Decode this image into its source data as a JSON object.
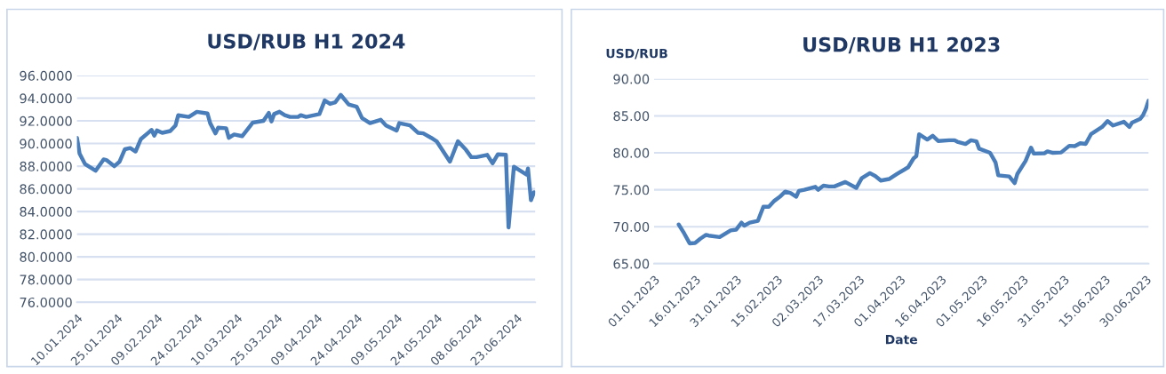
{
  "chart_data": [
    {
      "type": "line",
      "title": "USD/RUB H1 2024",
      "grid": "y",
      "x": [
        "2024-01-10",
        "2024-01-11",
        "2024-01-13",
        "2024-01-15",
        "2024-01-17",
        "2024-01-20",
        "2024-01-21",
        "2024-01-24",
        "2024-01-26",
        "2024-01-28",
        "2024-01-30",
        "2024-02-01",
        "2024-02-03",
        "2024-02-06",
        "2024-02-07",
        "2024-02-08",
        "2024-02-09",
        "2024-02-11",
        "2024-02-14",
        "2024-02-16",
        "2024-02-17",
        "2024-02-21",
        "2024-02-24",
        "2024-02-28",
        "2024-02-29",
        "2024-03-02",
        "2024-03-03",
        "2024-03-06",
        "2024-03-07",
        "2024-03-09",
        "2024-03-12",
        "2024-03-15",
        "2024-03-16",
        "2024-03-20",
        "2024-03-22",
        "2024-03-23",
        "2024-03-24",
        "2024-03-26",
        "2024-03-28",
        "2024-03-30",
        "2024-04-02",
        "2024-04-03",
        "2024-04-05",
        "2024-04-10",
        "2024-04-12",
        "2024-04-14",
        "2024-04-16",
        "2024-04-18",
        "2024-04-21",
        "2024-04-24",
        "2024-04-26",
        "2024-04-29",
        "2024-05-03",
        "2024-05-05",
        "2024-05-09",
        "2024-05-10",
        "2024-05-14",
        "2024-05-17",
        "2024-05-19",
        "2024-05-22",
        "2024-05-24",
        "2024-05-29",
        "2024-06-01",
        "2024-06-04",
        "2024-06-06",
        "2024-06-08",
        "2024-06-12",
        "2024-06-14",
        "2024-06-16",
        "2024-06-19",
        "2024-06-20",
        "2024-06-22",
        "2024-06-26T19:00",
        "2024-06-27T07:00",
        "2024-06-28T10:00",
        "2024-06-29T14:00"
      ],
      "series": [
        {
          "color": "#4a7ebb",
          "values": [
            90.5,
            89.1,
            88.2,
            87.9,
            87.6,
            88.6,
            88.55,
            88.0,
            88.4,
            89.5,
            89.6,
            89.3,
            90.4,
            91.0,
            91.2,
            90.7,
            91.15,
            90.95,
            91.1,
            91.6,
            92.5,
            92.35,
            92.8,
            92.65,
            91.8,
            90.9,
            91.4,
            91.35,
            90.5,
            90.8,
            90.65,
            91.55,
            91.85,
            92.0,
            92.7,
            91.95,
            92.6,
            92.8,
            92.5,
            92.35,
            92.35,
            92.5,
            92.35,
            92.6,
            93.8,
            93.5,
            93.65,
            94.3,
            93.45,
            93.25,
            92.25,
            91.8,
            92.1,
            91.6,
            91.15,
            91.8,
            91.6,
            90.95,
            90.9,
            90.5,
            90.2,
            88.4,
            90.2,
            89.45,
            88.8,
            88.8,
            89.0,
            88.25,
            89.05,
            89.0,
            82.6,
            87.95,
            87.25,
            87.8,
            85.0,
            85.7
          ]
        }
      ],
      "xlim": [
        "2024-01-10",
        "2024-06-30"
      ],
      "xticks": [
        {
          "value": "2024-01-10",
          "label": "10.01.2024"
        },
        {
          "value": "2024-01-25",
          "label": "25.01.2024"
        },
        {
          "value": "2024-02-09",
          "label": "09.02.2024"
        },
        {
          "value": "2024-02-24",
          "label": "24.02.2024"
        },
        {
          "value": "2024-03-10",
          "label": "10.03.2024"
        },
        {
          "value": "2024-03-25",
          "label": "25.03.2024"
        },
        {
          "value": "2024-04-09",
          "label": "09.04.2024"
        },
        {
          "value": "2024-04-24",
          "label": "24.04.2024"
        },
        {
          "value": "2024-05-09",
          "label": "09.05.2024"
        },
        {
          "value": "2024-05-24",
          "label": "24.05.2024"
        },
        {
          "value": "2024-06-08",
          "label": "08.06.2024"
        },
        {
          "value": "2024-06-23",
          "label": "23.06.2024"
        }
      ],
      "ylim": [
        76,
        96
      ],
      "yticks": [
        {
          "value": 76,
          "label": "76.0000"
        },
        {
          "value": 78,
          "label": "78.0000"
        },
        {
          "value": 80,
          "label": "80.0000"
        },
        {
          "value": 82,
          "label": "82.0000"
        },
        {
          "value": 84,
          "label": "84.0000"
        },
        {
          "value": 86,
          "label": "86.0000"
        },
        {
          "value": 88,
          "label": "88.0000"
        },
        {
          "value": 90,
          "label": "90.0000"
        },
        {
          "value": 92,
          "label": "92.0000"
        },
        {
          "value": 94,
          "label": "94.0000"
        },
        {
          "value": 96,
          "label": "96.0000"
        }
      ]
    },
    {
      "type": "line",
      "title": "USD/RUB H1 2023",
      "xlabel": "Date",
      "ylabel": "USD/RUB",
      "grid": "y",
      "x": [
        "2023-01-10",
        "2023-01-12",
        "2023-01-14",
        "2023-01-16",
        "2023-01-18",
        "2023-01-20",
        "2023-01-21",
        "2023-01-25",
        "2023-01-29",
        "2023-01-31",
        "2023-02-02",
        "2023-02-03",
        "2023-02-05",
        "2023-02-08",
        "2023-02-10",
        "2023-02-12",
        "2023-02-14",
        "2023-02-16",
        "2023-02-18",
        "2023-02-20",
        "2023-02-22",
        "2023-02-23",
        "2023-02-25",
        "2023-03-01",
        "2023-03-02",
        "2023-03-04",
        "2023-03-06",
        "2023-03-08",
        "2023-03-12",
        "2023-03-16",
        "2023-03-18",
        "2023-03-21",
        "2023-03-23",
        "2023-03-25",
        "2023-03-28",
        "2023-03-31",
        "2023-04-04",
        "2023-04-06",
        "2023-04-07",
        "2023-04-08",
        "2023-04-11",
        "2023-04-13",
        "2023-04-15",
        "2023-04-19",
        "2023-04-21",
        "2023-04-22",
        "2023-04-25",
        "2023-04-27",
        "2023-04-29",
        "2023-04-30",
        "2023-05-04",
        "2023-05-06",
        "2023-05-07",
        "2023-05-11",
        "2023-05-13",
        "2023-05-14",
        "2023-05-17",
        "2023-05-19",
        "2023-05-20",
        "2023-05-24",
        "2023-05-25",
        "2023-05-27",
        "2023-05-30",
        "2023-06-02",
        "2023-06-04",
        "2023-06-06",
        "2023-06-08",
        "2023-06-10",
        "2023-06-14",
        "2023-06-16",
        "2023-06-18",
        "2023-06-22",
        "2023-06-24",
        "2023-06-25",
        "2023-06-28",
        "2023-06-29",
        "2023-06-30",
        "2023-07-01"
      ],
      "series": [
        {
          "color": "#4a7ebb",
          "values": [
            70.3,
            69.1,
            67.75,
            67.8,
            68.4,
            68.9,
            68.8,
            68.6,
            69.5,
            69.6,
            70.55,
            70.15,
            70.55,
            70.8,
            72.7,
            72.7,
            73.5,
            74.05,
            74.75,
            74.55,
            74.05,
            74.85,
            75.0,
            75.4,
            75.0,
            75.55,
            75.45,
            75.45,
            76.05,
            75.25,
            76.55,
            77.25,
            76.85,
            76.25,
            76.45,
            77.15,
            78.05,
            79.25,
            79.55,
            82.5,
            81.8,
            82.3,
            81.6,
            81.7,
            81.7,
            81.5,
            81.2,
            81.7,
            81.55,
            80.55,
            80.0,
            78.7,
            76.95,
            76.8,
            75.9,
            77.15,
            78.9,
            80.7,
            79.9,
            79.95,
            80.2,
            80.0,
            80.05,
            80.95,
            80.9,
            81.3,
            81.2,
            82.55,
            83.5,
            84.3,
            83.7,
            84.2,
            83.5,
            84.1,
            84.6,
            85.1,
            85.9,
            87.05
          ]
        }
      ],
      "xlim": [
        "2023-01-01",
        "2023-07-01"
      ],
      "xticks": [
        {
          "value": "2023-01-01",
          "label": "01.01.2023"
        },
        {
          "value": "2023-01-16",
          "label": "16.01.2023"
        },
        {
          "value": "2023-01-31",
          "label": "31.01.2023"
        },
        {
          "value": "2023-02-15",
          "label": "15.02.2023"
        },
        {
          "value": "2023-03-02",
          "label": "02.03.2023"
        },
        {
          "value": "2023-03-17",
          "label": "17.03.2023"
        },
        {
          "value": "2023-04-01",
          "label": "01.04.2023"
        },
        {
          "value": "2023-04-16",
          "label": "16.04.2023"
        },
        {
          "value": "2023-05-01",
          "label": "01.05.2023"
        },
        {
          "value": "2023-05-16",
          "label": "16.05.2023"
        },
        {
          "value": "2023-05-31",
          "label": "31.05.2023"
        },
        {
          "value": "2023-06-15",
          "label": "15.06.2023"
        },
        {
          "value": "2023-06-30",
          "label": "30.06.2023"
        }
      ],
      "ylim": [
        65,
        90
      ],
      "yticks": [
        {
          "value": 65,
          "label": "65.00"
        },
        {
          "value": 70,
          "label": "70.00"
        },
        {
          "value": 75,
          "label": "75.00"
        },
        {
          "value": 80,
          "label": "80.00"
        },
        {
          "value": 85,
          "label": "85.00"
        },
        {
          "value": 90,
          "label": "90.00"
        }
      ]
    }
  ]
}
